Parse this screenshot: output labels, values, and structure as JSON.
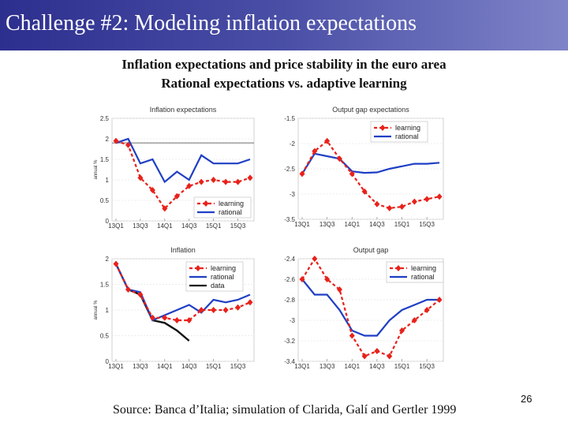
{
  "slide": {
    "title": "Challenge #2: Modeling inflation expectations",
    "subtitle_line1": "Inflation expectations and price stability in the euro area",
    "subtitle_line2": "Rational expectations vs. adaptive learning",
    "source": "Source: Banca d’Italia; simulation of Clarida, Galí and Gertler 1999",
    "page_number": "26"
  },
  "colors": {
    "learning": "#e8211a",
    "rational": "#1f3fc4",
    "data": "#111111",
    "reference": "#7f7f7f"
  },
  "chart_data": [
    {
      "type": "line",
      "title": "Inflation expectations",
      "ylabel": "annual %",
      "x_ticks": [
        "13Q1",
        "13Q3",
        "14Q1",
        "14Q3",
        "15Q1",
        "15Q3"
      ],
      "x": [
        "13Q1",
        "13Q2",
        "13Q3",
        "13Q4",
        "14Q1",
        "14Q2",
        "14Q3",
        "14Q4",
        "15Q1",
        "15Q2",
        "15Q3",
        "15Q4"
      ],
      "ylim": [
        0,
        2.5
      ],
      "y_ticks": [
        "0",
        "0.5",
        "1",
        "1.5",
        "2",
        "2.5"
      ],
      "reference_line": 1.9,
      "legend": "bottom-right",
      "series": [
        {
          "name": "learning",
          "style": "dashed-diamond",
          "values": [
            1.95,
            1.85,
            1.05,
            0.75,
            0.3,
            0.6,
            0.85,
            0.95,
            1.0,
            0.95,
            0.95,
            1.05
          ]
        },
        {
          "name": "rational",
          "style": "solid",
          "values": [
            1.9,
            2.0,
            1.4,
            1.5,
            0.95,
            1.2,
            1.0,
            1.6,
            1.4,
            1.4,
            1.4,
            1.5
          ]
        }
      ]
    },
    {
      "type": "line",
      "title": "Output gap expectations",
      "ylabel": "",
      "x_ticks": [
        "13Q1",
        "13Q3",
        "14Q1",
        "14Q3",
        "15Q1",
        "15Q3"
      ],
      "x": [
        "13Q1",
        "13Q2",
        "13Q3",
        "13Q4",
        "14Q1",
        "14Q2",
        "14Q3",
        "14Q4",
        "15Q1",
        "15Q2",
        "15Q3",
        "15Q4"
      ],
      "ylim": [
        -3.5,
        -1.5
      ],
      "y_ticks": [
        "-3.5",
        "-3",
        "-2.5",
        "-2",
        "-1.5"
      ],
      "legend": "top-right",
      "series": [
        {
          "name": "learning",
          "style": "dashed-diamond",
          "values": [
            -2.6,
            -2.15,
            -1.95,
            -2.3,
            -2.6,
            -2.95,
            -3.2,
            -3.28,
            -3.25,
            -3.15,
            -3.1,
            -3.05
          ]
        },
        {
          "name": "rational",
          "style": "solid",
          "values": [
            -2.6,
            -2.2,
            -2.25,
            -2.3,
            -2.55,
            -2.58,
            -2.57,
            -2.5,
            -2.45,
            -2.4,
            -2.4,
            -2.38
          ]
        }
      ]
    },
    {
      "type": "line",
      "title": "Inflation",
      "ylabel": "annual %",
      "x_ticks": [
        "13Q1",
        "13Q3",
        "14Q1",
        "14Q3",
        "15Q1",
        "15Q3"
      ],
      "x": [
        "13Q1",
        "13Q2",
        "13Q3",
        "13Q4",
        "14Q1",
        "14Q2",
        "14Q3",
        "14Q4",
        "15Q1",
        "15Q2",
        "15Q3",
        "15Q4"
      ],
      "ylim": [
        0,
        2
      ],
      "y_ticks": [
        "0",
        "0.5",
        "1",
        "1.5",
        "2"
      ],
      "legend": "top-right",
      "series": [
        {
          "name": "learning",
          "style": "dashed-diamond",
          "values": [
            1.9,
            1.4,
            1.3,
            0.85,
            0.85,
            0.8,
            0.8,
            1.0,
            1.0,
            1.0,
            1.05,
            1.15
          ]
        },
        {
          "name": "rational",
          "style": "solid",
          "values": [
            1.9,
            1.4,
            1.35,
            0.8,
            0.9,
            1.0,
            1.1,
            0.95,
            1.2,
            1.15,
            1.2,
            1.3
          ]
        },
        {
          "name": "data",
          "style": "solid-thick",
          "values": [
            1.9,
            1.4,
            1.3,
            0.8,
            0.75,
            0.6,
            0.4,
            null,
            null,
            null,
            null,
            null
          ]
        }
      ]
    },
    {
      "type": "line",
      "title": "Output gap",
      "ylabel": "",
      "x_ticks": [
        "13Q1",
        "13Q3",
        "14Q1",
        "14Q3",
        "15Q1",
        "15Q3"
      ],
      "x": [
        "13Q1",
        "13Q2",
        "13Q3",
        "13Q4",
        "14Q1",
        "14Q2",
        "14Q3",
        "14Q4",
        "15Q1",
        "15Q2",
        "15Q3",
        "15Q4"
      ],
      "ylim": [
        -3.4,
        -2.4
      ],
      "y_ticks": [
        "-3.4",
        "-3.2",
        "-3",
        "-2.8",
        "-2.6",
        "-2.4"
      ],
      "legend": "top-right",
      "series": [
        {
          "name": "learning",
          "style": "dashed-diamond",
          "values": [
            -2.6,
            -2.4,
            -2.6,
            -2.7,
            -3.15,
            -3.35,
            -3.3,
            -3.35,
            -3.1,
            -3.0,
            -2.9,
            -2.8
          ]
        },
        {
          "name": "rational",
          "style": "solid",
          "values": [
            -2.6,
            -2.75,
            -2.75,
            -2.9,
            -3.1,
            -3.15,
            -3.15,
            -3.0,
            -2.9,
            -2.85,
            -2.8,
            -2.8
          ]
        }
      ]
    }
  ]
}
